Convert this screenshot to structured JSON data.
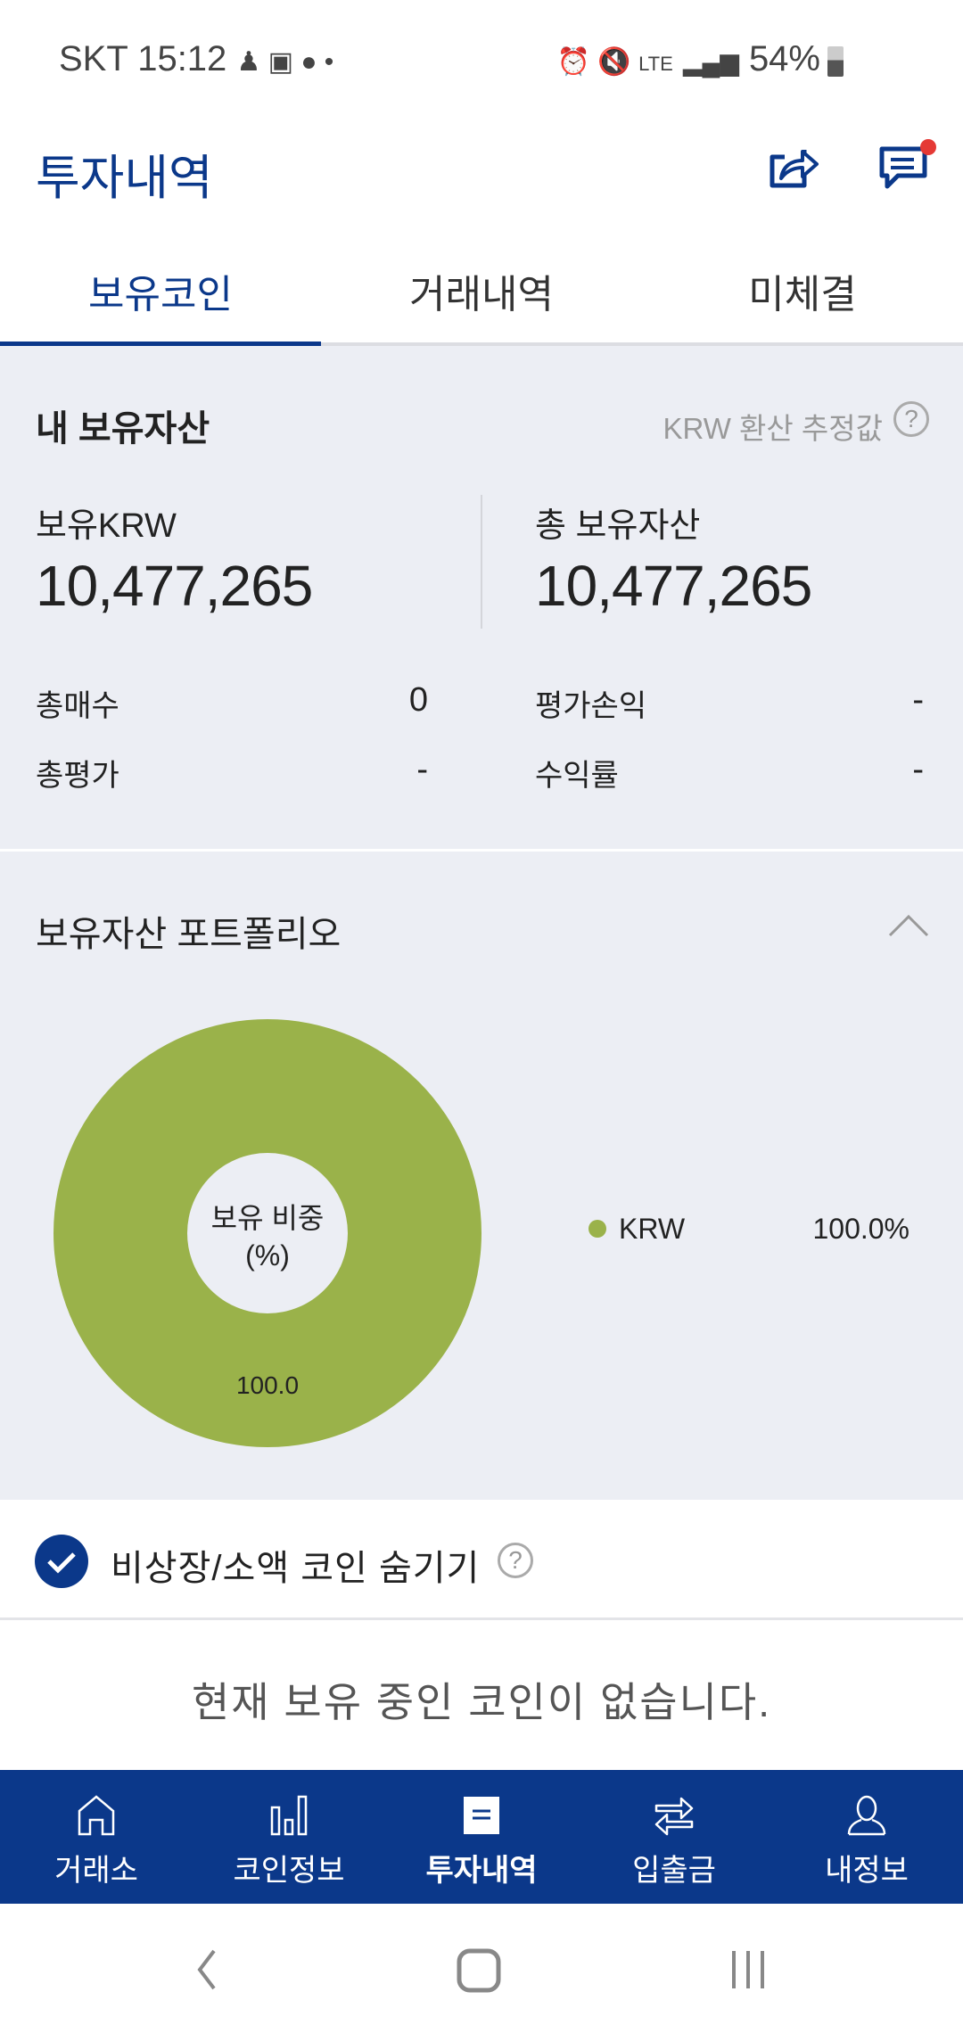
{
  "status_bar": {
    "carrier": "SKT",
    "time": "15:12",
    "network": "LTE",
    "battery": "54%"
  },
  "header": {
    "title": "투자내역",
    "share_icon": "share-icon",
    "message_icon": "message-icon",
    "notification_color": "#e53935"
  },
  "tabs": [
    {
      "label": "보유코인",
      "active": true
    },
    {
      "label": "거래내역"
    },
    {
      "label": "미체결"
    }
  ],
  "assets": {
    "title": "내 보유자산",
    "estimate_label": "KRW 환산 추정값",
    "krw_label": "보유KRW",
    "krw_value": "10,477,265",
    "total_label": "총 보유자산",
    "total_value": "10,477,265",
    "rows": [
      {
        "label": "총매수",
        "value": "0"
      },
      {
        "label": "평가손익",
        "value": "-"
      },
      {
        "label": "총평가",
        "value": "-"
      },
      {
        "label": "수익률",
        "value": "-"
      }
    ]
  },
  "portfolio": {
    "title": "보유자산 포트폴리오",
    "center_label_1": "보유 비중",
    "center_label_2": "(%)"
  },
  "chart_data": {
    "type": "pie",
    "categories": [
      "KRW"
    ],
    "values": [
      100.0
    ],
    "data_labels": [
      "100.0"
    ],
    "legend": [
      {
        "name": "KRW",
        "value": "100.0%"
      }
    ],
    "colors": [
      "#9ab24a"
    ],
    "legend_placement": "right"
  },
  "hide_option": {
    "label": "비상장/소액 코인 숨기기",
    "checked": true
  },
  "empty_message": "현재 보유 중인 코인이 없습니다.",
  "bottom_nav": [
    {
      "label": "거래소",
      "icon": "home-icon"
    },
    {
      "label": "코인정보",
      "icon": "bar-chart-icon"
    },
    {
      "label": "투자내역",
      "icon": "document-icon",
      "active": true
    },
    {
      "label": "입출금",
      "icon": "transfer-icon"
    },
    {
      "label": "내정보",
      "icon": "user-icon"
    }
  ],
  "colors": {
    "brand": "#0b388a",
    "background": "#eceef4",
    "chart": "#9ab24a"
  }
}
